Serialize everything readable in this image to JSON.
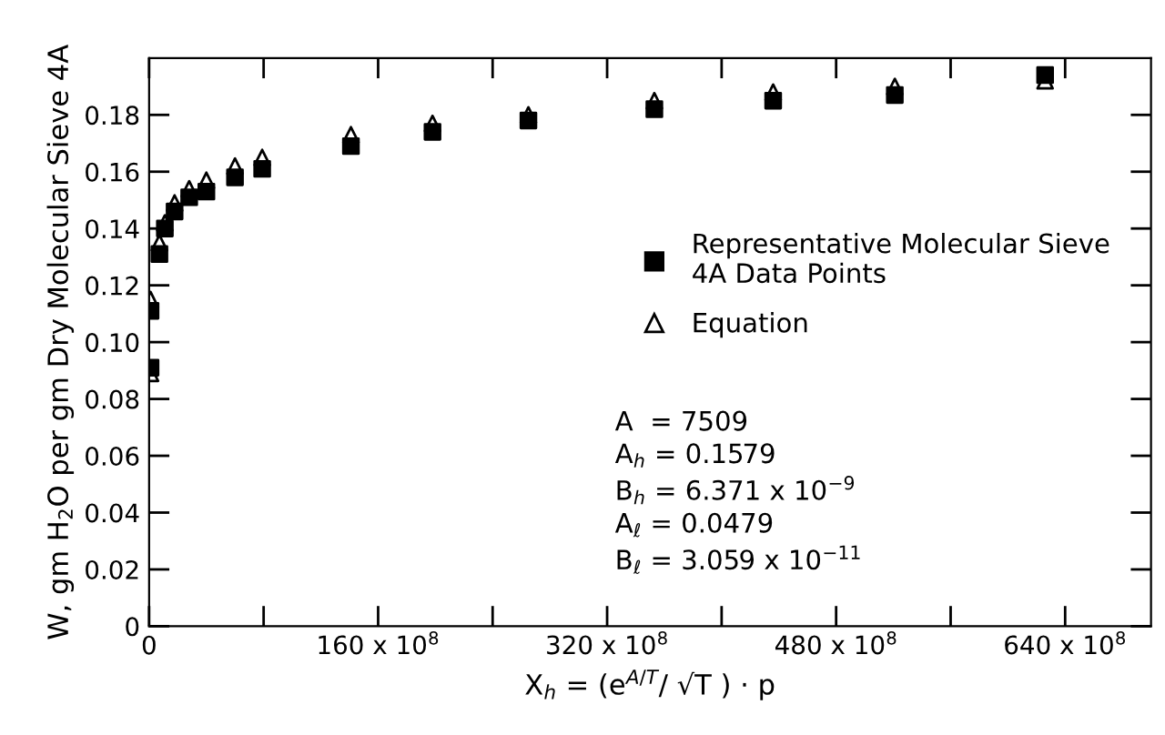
{
  "chart_data": {
    "type": "scatter",
    "xlabel": "X$_{h}$ = (e$^{A/T}$/ √T ) · p",
    "ylabel": "W, gm H$_{2}$O per gm Dry Molecular Sieve 4A",
    "series": [
      {
        "name": "Representative Molecular Sieve\n4A Data Points",
        "color": "#000000",
        "marker": "square",
        "x": [
          100000000,
          100000000,
          720000000,
          1100000000,
          1780000000,
          2800000000,
          4000000000,
          6000000000,
          7900000000,
          14100000000,
          19800000000,
          26500000000,
          35300000000,
          43600000000,
          52100000000,
          62600000000
        ],
        "values": [
          0.091,
          0.111,
          0.131,
          0.14,
          0.146,
          0.151,
          0.153,
          0.158,
          0.161,
          0.169,
          0.174,
          0.178,
          0.182,
          0.185,
          0.187,
          0.194
        ]
      },
      {
        "name": "Equation",
        "color": "#000000",
        "marker": "triangle",
        "x": [
          100000000,
          100000000,
          720000000,
          1100000000,
          1780000000,
          2800000000,
          4000000000,
          6000000000,
          7900000000,
          14100000000,
          19800000000,
          26500000000,
          35300000000,
          43600000000,
          52100000000,
          62600000000
        ],
        "values": [
          0.089,
          0.115,
          0.135,
          0.142,
          0.149,
          0.154,
          0.157,
          0.162,
          0.165,
          0.173,
          0.177,
          0.18,
          0.185,
          0.188,
          0.19,
          0.192
        ]
      }
    ],
    "annotations": [
      "A  = 7509\nA$_{h}$ = 0.1579\nB$_{h}$ = 6.371 x 10$^{−9}$\nA$_{ℓ}$ = 0.0479\nB$_{ℓ}$ = 3.059 x 10$^{−11}$"
    ],
    "xlim": [
      0,
      70000000000
    ],
    "ylim": [
      0,
      0.2
    ],
    "xticks": [
      {
        "value": 0,
        "label": "0"
      },
      {
        "value": 8000000000,
        "label": null
      },
      {
        "value": 16000000000,
        "label": "160 x 10$^{8}$"
      },
      {
        "value": 24000000000,
        "label": null
      },
      {
        "value": 32000000000,
        "label": "320 x 10$^{8}$"
      },
      {
        "value": 40000000000,
        "label": null
      },
      {
        "value": 48000000000,
        "label": "480 x 10$^{8}$"
      },
      {
        "value": 56000000000,
        "label": null
      },
      {
        "value": 64000000000,
        "label": "640 x 10$^{8}$"
      }
    ],
    "yticks": [
      0,
      0.02,
      0.04,
      0.06,
      0.08,
      {
        "value": 0.1,
        "label": "0.10"
      },
      0.12,
      0.14,
      0.16,
      0.18
    ],
    "legend": "center right",
    "grid": false
  }
}
